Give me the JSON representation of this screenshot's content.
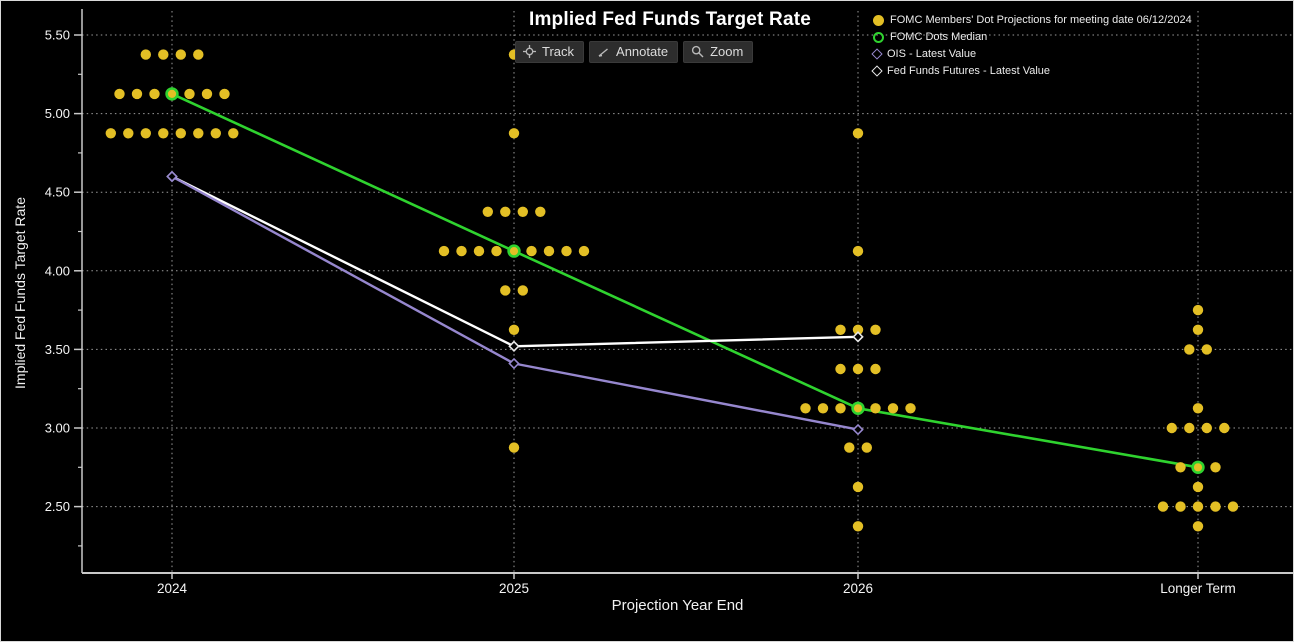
{
  "title": "Implied Fed Funds Target Rate",
  "toolbar": {
    "track_label": "Track",
    "annotate_label": "Annotate",
    "zoom_label": "Zoom"
  },
  "legend": {
    "items": [
      {
        "label": "FOMC Members' Dot Projections for meeting date 06/12/2024",
        "marker": "filled-circle",
        "color": "#e3bf25"
      },
      {
        "label": "FOMC Dots Median",
        "marker": "open-circle",
        "color": "#2fd32f"
      },
      {
        "label": "OIS - Latest Value",
        "marker": "open-diamond",
        "color": "#9687ce"
      },
      {
        "label": "Fed Funds Futures - Latest Value",
        "marker": "open-diamond",
        "color": "#e8e8e8"
      }
    ]
  },
  "axes": {
    "y_label": "Implied Fed Funds Target Rate",
    "x_label": "Projection Year End",
    "y_tick_labels": [
      "5.50",
      "5.00",
      "4.50",
      "4.00",
      "3.50",
      "3.00",
      "2.50"
    ],
    "y_tick_values": [
      5.5,
      5.0,
      4.5,
      4.0,
      3.5,
      3.0,
      2.5
    ],
    "x_tick_labels": [
      "2024",
      "2025",
      "2026",
      "Longer Term"
    ]
  },
  "colors": {
    "dots": "#e3bf25",
    "median": "#2fd32f",
    "ois": "#9687ce",
    "fed_funds_futures": "#ffffff",
    "grid": "#9c9c9c",
    "axis": "#c9c9c9",
    "tick_text": "#f5f5f5",
    "background": "#000000"
  },
  "chart_data": {
    "type": "scatter",
    "title": "Implied Fed Funds Target Rate",
    "xlabel": "Projection Year End",
    "ylabel": "Implied Fed Funds Target Rate",
    "ylim": [
      2.1,
      5.65
    ],
    "grid": "dotted",
    "legend_position": "top-right",
    "categories": [
      "2024",
      "2025",
      "2026",
      "Longer Term"
    ],
    "dot_projections": [
      {
        "year": "2024",
        "rows": [
          {
            "rate": 5.375,
            "count": 4
          },
          {
            "rate": 5.125,
            "count": 7
          },
          {
            "rate": 4.875,
            "count": 8
          }
        ]
      },
      {
        "year": "2025",
        "rows": [
          {
            "rate": 5.375,
            "count": 1
          },
          {
            "rate": 4.875,
            "count": 1
          },
          {
            "rate": 4.375,
            "count": 4
          },
          {
            "rate": 4.125,
            "count": 9
          },
          {
            "rate": 3.875,
            "count": 2
          },
          {
            "rate": 3.625,
            "count": 1
          },
          {
            "rate": 2.875,
            "count": 1
          }
        ]
      },
      {
        "year": "2026",
        "rows": [
          {
            "rate": 4.875,
            "count": 1
          },
          {
            "rate": 4.125,
            "count": 1
          },
          {
            "rate": 3.625,
            "count": 3
          },
          {
            "rate": 3.375,
            "count": 3
          },
          {
            "rate": 3.125,
            "count": 7
          },
          {
            "rate": 2.875,
            "count": 2
          },
          {
            "rate": 2.625,
            "count": 1
          },
          {
            "rate": 2.375,
            "count": 1
          }
        ]
      },
      {
        "year": "Longer Term",
        "rows": [
          {
            "rate": 3.75,
            "count": 1
          },
          {
            "rate": 3.625,
            "count": 1
          },
          {
            "rate": 3.5,
            "count": 2
          },
          {
            "rate": 3.125,
            "count": 1
          },
          {
            "rate": 3.0,
            "count": 4
          },
          {
            "rate": 2.75,
            "count": 3
          },
          {
            "rate": 2.625,
            "count": 1
          },
          {
            "rate": 2.5,
            "count": 5
          },
          {
            "rate": 2.375,
            "count": 1
          }
        ]
      }
    ],
    "series": [
      {
        "name": "FOMC Dots Median",
        "color": "#2fd32f",
        "marker": "open-circle",
        "x": [
          "2024",
          "2025",
          "2026",
          "Longer Term"
        ],
        "values": [
          5.125,
          4.125,
          3.125,
          2.75
        ]
      },
      {
        "name": "Fed Funds Futures - Latest Value",
        "color": "#ffffff",
        "marker": "open-diamond",
        "x": [
          "2024",
          "2025",
          "2026"
        ],
        "values": [
          4.6,
          3.52,
          3.58
        ]
      },
      {
        "name": "OIS - Latest Value",
        "color": "#9687ce",
        "marker": "open-diamond",
        "x": [
          "2024",
          "2025",
          "2026"
        ],
        "values": [
          4.6,
          3.41,
          2.99
        ]
      }
    ]
  }
}
